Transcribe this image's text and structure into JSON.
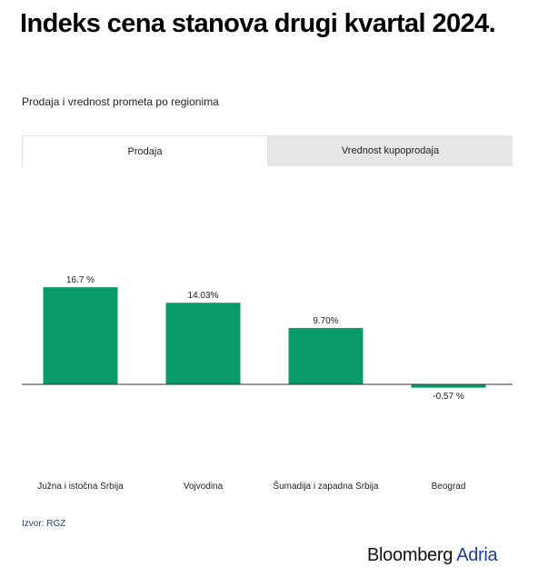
{
  "header": {
    "title": "Indeks cena stanova drugi kvartal 2024.",
    "subtitle": "Prodaja i vrednost prometa po regionima"
  },
  "tabs": [
    {
      "label": "Prodaja",
      "active": true
    },
    {
      "label": "Vrednost kupoprodaja",
      "active": false
    }
  ],
  "colors": {
    "bar": "#0a9a6a",
    "axis": "#333333",
    "brand_blue": "#1f3f8c"
  },
  "chart_data": {
    "type": "bar",
    "categories": [
      "Južna i istočna Srbija",
      "Vojvodina",
      "Šumadija i zapadna Srbija",
      "Beograd"
    ],
    "values": [
      16.7,
      14.03,
      9.7,
      -0.57
    ],
    "data_labels": [
      "16.7 %",
      "14.03%",
      "9.70%",
      "-0.57 %"
    ],
    "ylim": [
      -5,
      20
    ],
    "grid": false
  },
  "footer": {
    "source": "Izvor: RGZ",
    "brand_primary": "Bloomberg",
    "brand_secondary": "Adria"
  }
}
